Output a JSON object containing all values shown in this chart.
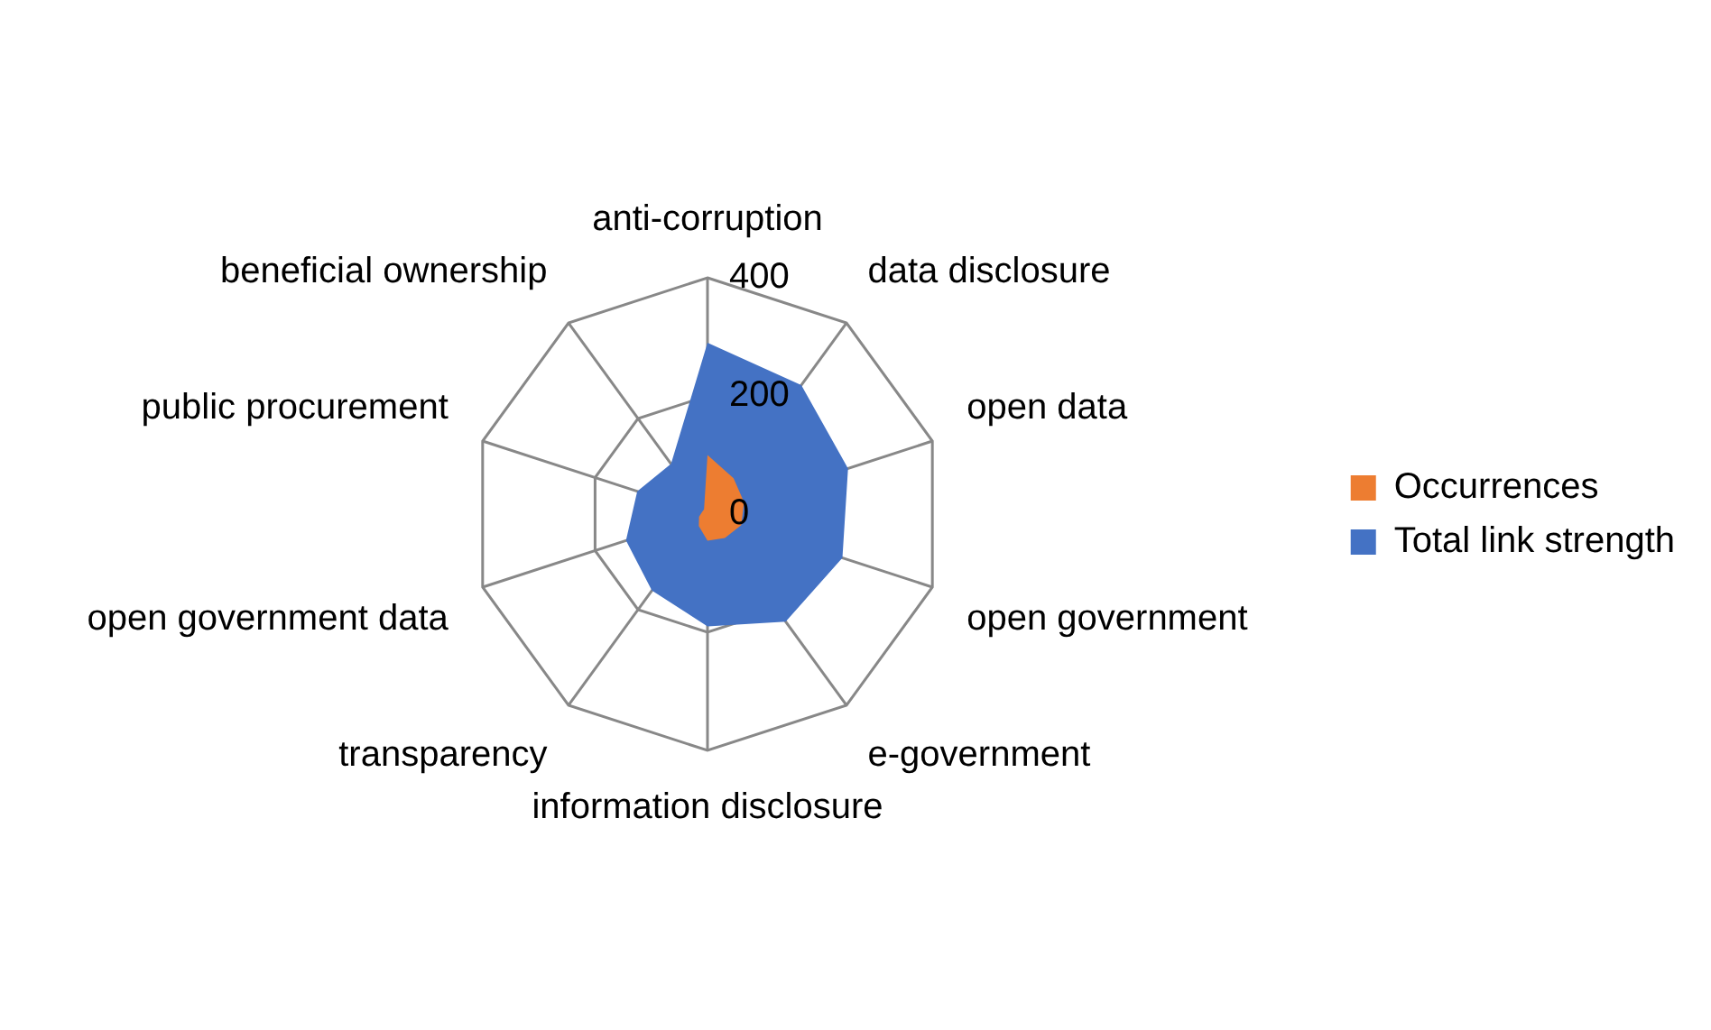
{
  "chart_data": {
    "type": "radar",
    "categories": [
      "anti-corruption",
      "data disclosure",
      "open data",
      "open government",
      "e-government",
      "information disclosure",
      "transparency",
      "open government data",
      "public procurement",
      "beneficial ownership"
    ],
    "series": [
      {
        "name": "Occurrences",
        "color": "#ed7d31",
        "values": [
          100,
          75,
          65,
          60,
          50,
          45,
          25,
          15,
          10,
          10
        ]
      },
      {
        "name": "Total link strength",
        "color": "#4472c4",
        "values": [
          290,
          270,
          250,
          240,
          225,
          190,
          160,
          145,
          125,
          105
        ]
      }
    ],
    "ylim": [
      0,
      400
    ],
    "yticks": [
      0,
      200,
      400
    ],
    "grid": true,
    "legend": "right"
  }
}
